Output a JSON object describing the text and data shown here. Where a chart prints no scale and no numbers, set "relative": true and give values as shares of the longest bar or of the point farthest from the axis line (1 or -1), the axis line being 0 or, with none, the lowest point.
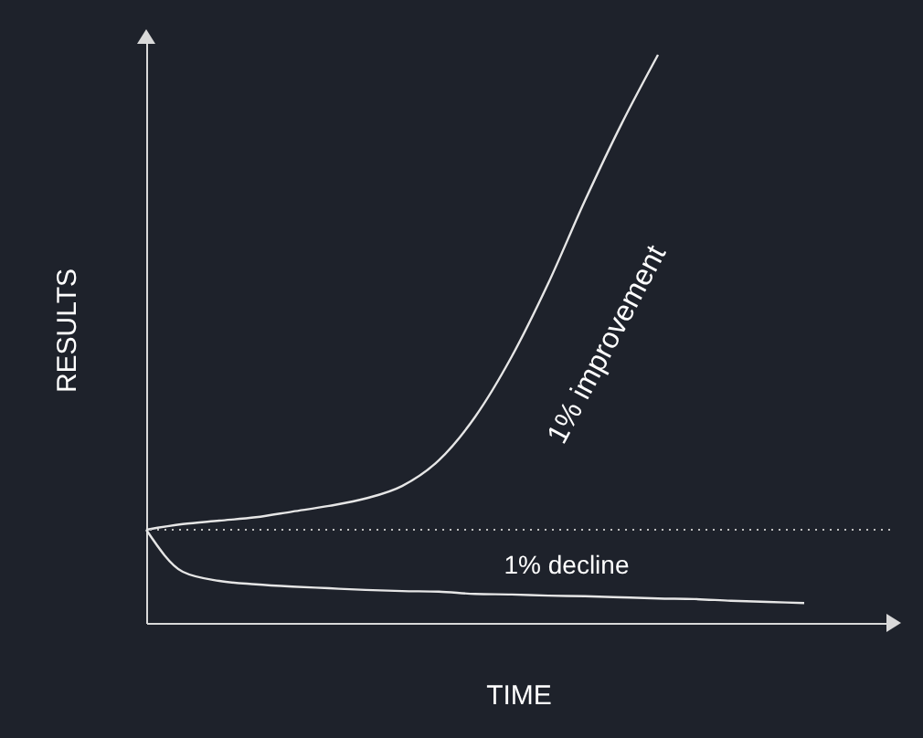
{
  "chart_data": {
    "type": "line",
    "relative": true,
    "xlabel": "TIME",
    "ylabel": "RESULTS",
    "categories": [
      null,
      null,
      null,
      null,
      null,
      null,
      null,
      null,
      null,
      null,
      null,
      null,
      null,
      null,
      null,
      null,
      null,
      null,
      null
    ],
    "series": [
      {
        "name": "1% improvement",
        "color": "#e6e6e6",
        "values": [
          0.164,
          0.174,
          0.18,
          0.186,
          0.196,
          0.206,
          0.219,
          0.241,
          0.286,
          0.363,
          0.469,
          0.598,
          0.743,
          0.878,
          1,
          null,
          null,
          null,
          null
        ]
      },
      {
        "name": "1% decline",
        "color": "#e6e6e6",
        "values": [
          0.164,
          0.09,
          0.074,
          0.068,
          0.064,
          0.061,
          0.058,
          0.056,
          0.055,
          0.051,
          0.05,
          0.048,
          0.047,
          0.045,
          0.043,
          0.042,
          0.039,
          0.037,
          0.035
        ]
      }
    ],
    "ref_lines": [
      {
        "axis": "y",
        "value": 0.164,
        "color": "#bfbfbf",
        "line_style": "dotted"
      }
    ],
    "grid": false,
    "marker": "none",
    "line_style": "solid"
  }
}
